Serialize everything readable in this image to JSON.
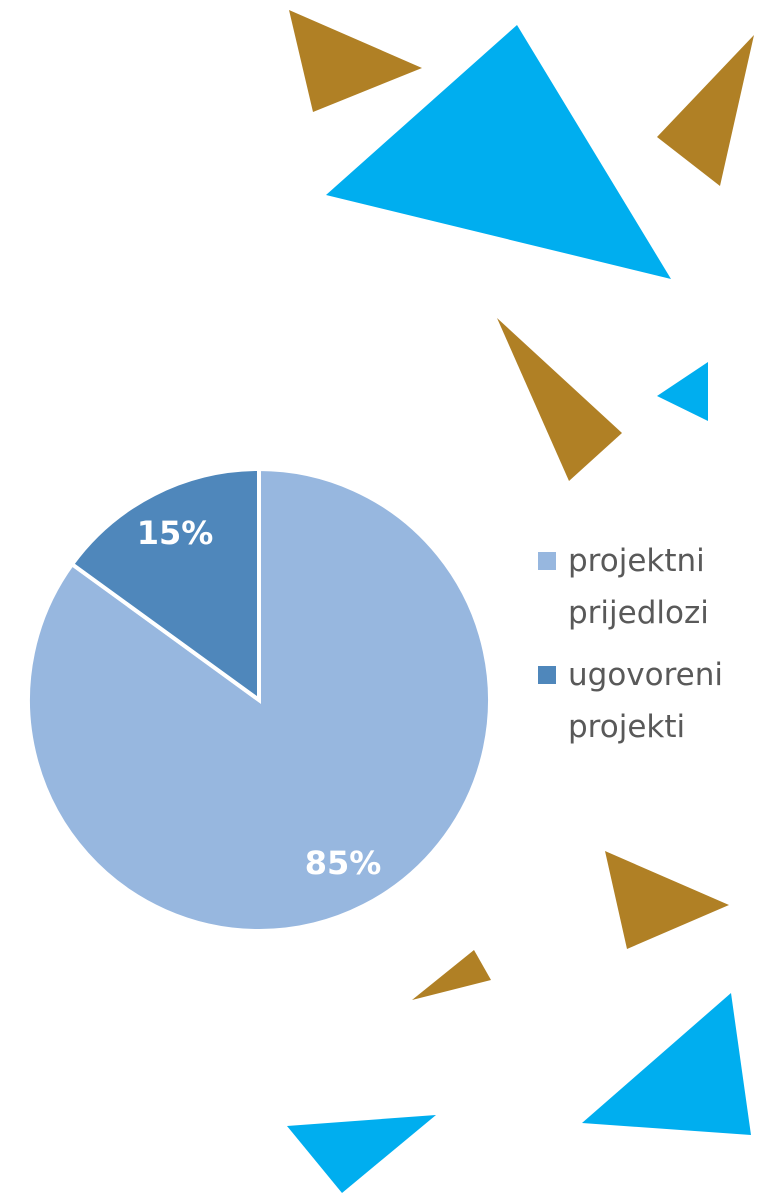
{
  "chart_data": {
    "type": "pie",
    "categories": [
      "projektni prijedlozi",
      "ugovoreni projekti"
    ],
    "values": [
      85,
      15
    ],
    "value_labels": [
      "85%",
      "15%"
    ],
    "colors": [
      "#97b7df",
      "#4f87bb"
    ]
  }
}
